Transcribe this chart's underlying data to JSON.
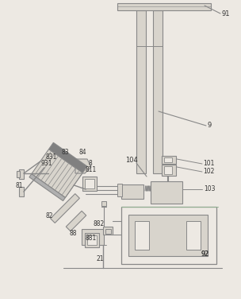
{
  "bg_color": "#ede9e3",
  "lc": "#888888",
  "fl": "#d8d4cc",
  "fd": "#909090",
  "fh": "#b0b0b0",
  "white": "#f5f3ef"
}
